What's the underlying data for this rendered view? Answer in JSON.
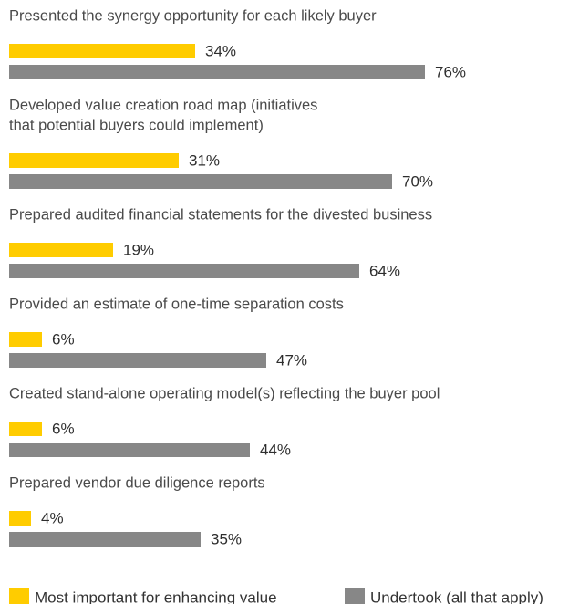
{
  "chart_data": {
    "type": "bar",
    "orientation": "horizontal",
    "categories": [
      [
        "Presented the synergy opportunity for each likely buyer"
      ],
      [
        "Developed value creation road map (initiatives",
        "that potential buyers could implement)"
      ],
      [
        "Prepared audited financial statements for the divested business"
      ],
      [
        "Provided an estimate of one-time separation costs"
      ],
      [
        "Created stand-alone operating model(s) reflecting the buyer pool"
      ],
      [
        "Prepared vendor due diligence reports"
      ]
    ],
    "series": [
      {
        "name": "Most important for enhancing value",
        "color": "#FFCC00",
        "values": [
          34,
          31,
          19,
          6,
          6,
          4
        ],
        "labels": [
          "34%",
          "31%",
          "19%",
          "6%",
          "6%",
          "4%"
        ]
      },
      {
        "name": "Undertook (all that apply)",
        "color": "#878787",
        "values": [
          76,
          70,
          64,
          47,
          44,
          35
        ],
        "labels": [
          "76%",
          "70%",
          "64%",
          "47%",
          "44%",
          "35%"
        ]
      }
    ],
    "xlim": [
      0,
      100
    ],
    "grid": false,
    "legend": "bottom"
  }
}
